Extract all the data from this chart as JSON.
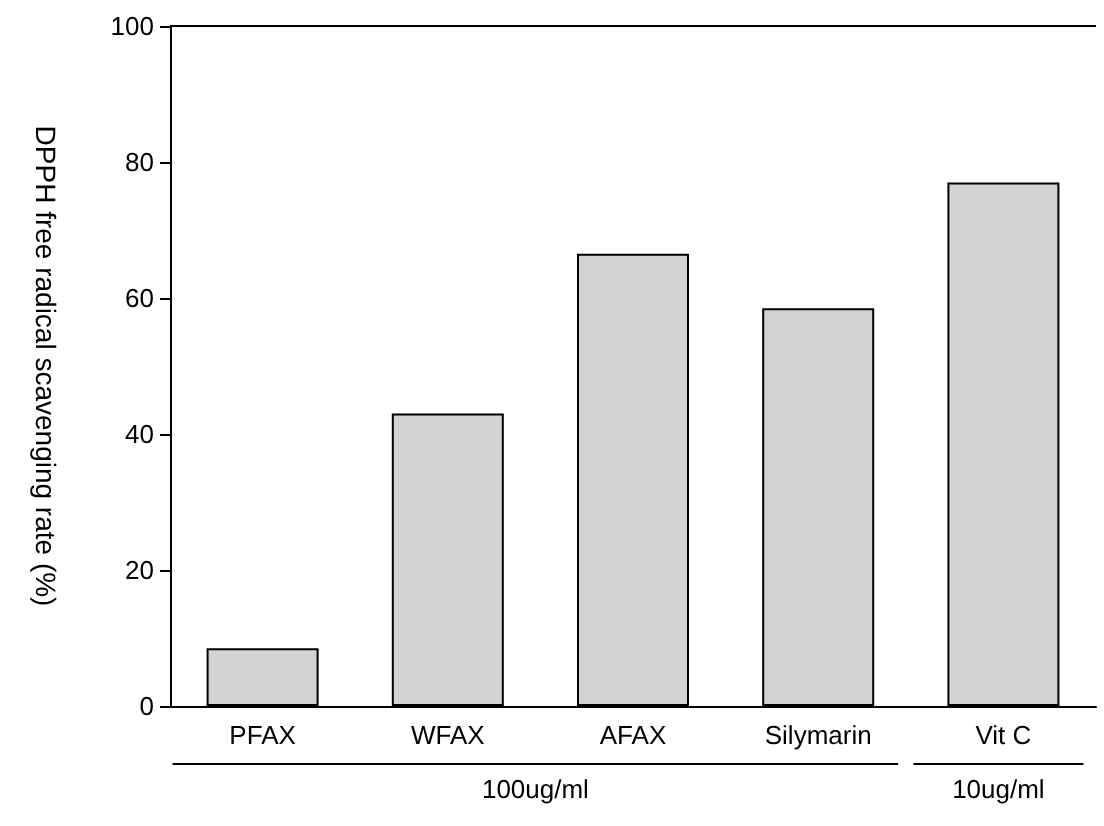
{
  "chart_data": {
    "type": "bar",
    "ylabel": "DPPH free radical scavenging rate (%)",
    "categories": [
      "PFAX",
      "WFAX",
      "AFAX",
      "Silymarin",
      "Vit C"
    ],
    "values": [
      8.5,
      43,
      66.5,
      58.5,
      77
    ],
    "color": "#d3d3d3",
    "ylim": [
      0,
      100
    ],
    "yticks": [
      0,
      20,
      40,
      60,
      80,
      100
    ],
    "grid": false,
    "annotations": [
      "100ug/ml",
      "10ug/ml"
    ]
  }
}
